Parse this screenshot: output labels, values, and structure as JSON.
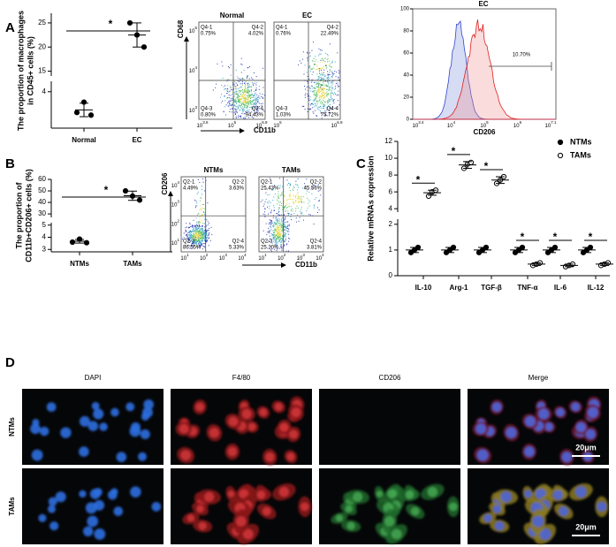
{
  "chart_data": [
    {
      "type": "dot",
      "y_label": [
        "The proportion of macrophages",
        "in CD45+ cells (%)"
      ],
      "categories": [
        "Normal",
        "EC"
      ],
      "values": [
        [
          3.6,
          3.8,
          3.55
        ],
        [
          25,
          22.5,
          20
        ]
      ],
      "means": [
        3.65,
        22.5
      ],
      "errors": [
        0.13,
        2.5
      ],
      "ylim": [
        3.3,
        27
      ],
      "axis_break": [
        4.2,
        14
      ],
      "yticks": [
        4,
        15,
        20,
        25
      ],
      "annotations": [
        "*"
      ],
      "color": "#000000"
    },
    {
      "type": "dot",
      "y_label": [
        "The proportion of",
        "CD11b+CD206+ cells (%)"
      ],
      "categories": [
        "NTMs",
        "TAMs"
      ],
      "values": [
        [
          3.6,
          3.85,
          3.55
        ],
        [
          50,
          45.5,
          42
        ]
      ],
      "means": [
        3.67,
        45.8
      ],
      "errors": [
        0.15,
        4
      ],
      "ylim": [
        2.8,
        60
      ],
      "axis_break": [
        5.2,
        27
      ],
      "yticks": [
        3,
        4,
        5,
        30,
        40,
        50,
        60
      ],
      "annotations": [
        "*"
      ],
      "color": "#000000"
    },
    {
      "type": "dot",
      "y_label": [
        "Relative mRNAs expression"
      ],
      "categories": [
        "IL-10",
        "Arg-1",
        "TGF-β",
        "TNF-α",
        "IL-6",
        "IL-12"
      ],
      "series": [
        {
          "name": "NTMs",
          "marker": "filled",
          "color": "#000000",
          "values": [
            [
              0.9,
              1.0,
              1.1
            ],
            [
              0.9,
              1.0,
              1.1
            ],
            [
              0.9,
              1.0,
              1.1
            ],
            [
              0.9,
              1.0,
              1.1
            ],
            [
              0.9,
              1.0,
              1.1
            ],
            [
              0.9,
              1.0,
              1.1
            ]
          ],
          "means": [
            1,
            1,
            1,
            1,
            1,
            1
          ],
          "errors": [
            0.1,
            0.1,
            0.1,
            0.1,
            0.1,
            0.1
          ]
        },
        {
          "name": "TAMs",
          "marker": "open",
          "color": "#000000",
          "values": [
            [
              5.5,
              6.0,
              6.2
            ],
            [
              8.8,
              9.3,
              9.5
            ],
            [
              7.0,
              7.4,
              7.8
            ],
            [
              0.4,
              0.45,
              0.5
            ],
            [
              0.35,
              0.4,
              0.45
            ],
            [
              0.4,
              0.45,
              0.5
            ]
          ],
          "means": [
            5.9,
            9.2,
            7.4,
            0.45,
            0.4,
            0.45
          ],
          "errors": [
            0.3,
            0.4,
            0.4,
            0.05,
            0.05,
            0.05
          ]
        }
      ],
      "ylim": [
        0,
        12
      ],
      "axis_break": [
        2.2,
        3.6
      ],
      "yticks": [
        0,
        1,
        2,
        4,
        6,
        8,
        10,
        12
      ],
      "annotations": [
        "*",
        "*",
        "*",
        "*",
        "*",
        "*"
      ],
      "legend": "upper right"
    }
  ],
  "figure": {
    "panel_labels": [
      "A",
      "B",
      "C",
      "D"
    ],
    "flow_a": {
      "y_label": "CD68",
      "x_label": "CD11b",
      "y_ticks": [
        {
          "base": "10",
          "exp": "3"
        },
        {
          "base": "10",
          "exp": "4"
        },
        {
          "base": "10",
          "exp": "5"
        }
      ],
      "plots": [
        {
          "title": "Normal",
          "x_ticks": [
            {
              "base": "10",
              "exp": "3.6"
            },
            {
              "base": "10",
              "exp": "5"
            },
            {
              "base": "10",
              "exp": "6.9"
            }
          ],
          "quadrants": [
            [
              "Q4-1",
              "0.75%"
            ],
            [
              "Q4-2",
              "4.02%"
            ],
            [
              "Q4-3",
              "0.80%"
            ],
            [
              "Q4-4",
              "94.43%"
            ]
          ]
        },
        {
          "title": "EC",
          "x_ticks": [
            {
              "base": "10",
              "exp": "5"
            },
            {
              "base": "10",
              "exp": "6.9"
            }
          ],
          "quadrants": [
            [
              "Q4-1",
              "0.76%"
            ],
            [
              "Q4-2",
              "22.49%"
            ],
            [
              "Q4-3",
              "1.03%"
            ],
            [
              "Q4-4",
              "75.72%"
            ]
          ]
        }
      ]
    },
    "histogram_a": {
      "title": "EC",
      "gate": "10.70%",
      "x_label": "CD206",
      "yticks": [
        0,
        20,
        40,
        60,
        80,
        100
      ],
      "x_ticks": [
        {
          "base": "10",
          "exp": "3.4"
        },
        {
          "base": "10",
          "exp": "4"
        },
        {
          "base": "10",
          "exp": "5"
        },
        {
          "base": "10",
          "exp": "6"
        },
        {
          "base": "10",
          "exp": "7.1"
        }
      ]
    },
    "flow_b": {
      "y_label": "CD206",
      "x_label": "CD11b",
      "y_ticks": [
        {
          "base": "10",
          "exp": "1"
        },
        {
          "base": "10",
          "exp": "2"
        },
        {
          "base": "10",
          "exp": "3"
        },
        {
          "base": "10",
          "exp": "4"
        }
      ],
      "plots": [
        {
          "title": "NTMs",
          "x_ticks": [
            {
              "base": "10",
              "exp": "1"
            },
            {
              "base": "10",
              "exp": "2"
            },
            {
              "base": "10",
              "exp": "3"
            },
            {
              "base": "10",
              "exp": "4"
            }
          ],
          "quadrants": [
            [
              "Q2-1",
              "4.49%"
            ],
            [
              "Q2-2",
              "3.63%"
            ],
            [
              "Q2-3",
              "86.55%"
            ],
            [
              "Q2-4",
              "5.33%"
            ]
          ]
        },
        {
          "title": "TAMs",
          "x_ticks": [
            {
              "base": "10",
              "exp": "1"
            },
            {
              "base": "10",
              "exp": "2"
            },
            {
              "base": "10",
              "exp": "3"
            },
            {
              "base": "10",
              "exp": "4"
            }
          ],
          "quadrants": [
            [
              "Q2-1",
              "25.43%"
            ],
            [
              "Q2-2",
              "45.56%"
            ],
            [
              "Q2-3",
              "25.20%"
            ],
            [
              "Q2-4",
              "3.81%"
            ]
          ]
        }
      ]
    },
    "microscopy": {
      "columns": [
        "DAPI",
        "F4/80",
        "CD206",
        "Merge"
      ],
      "rows": [
        "NTMs",
        "TAMs"
      ],
      "scale_bar": [
        "20μm",
        "20μm"
      ]
    }
  }
}
